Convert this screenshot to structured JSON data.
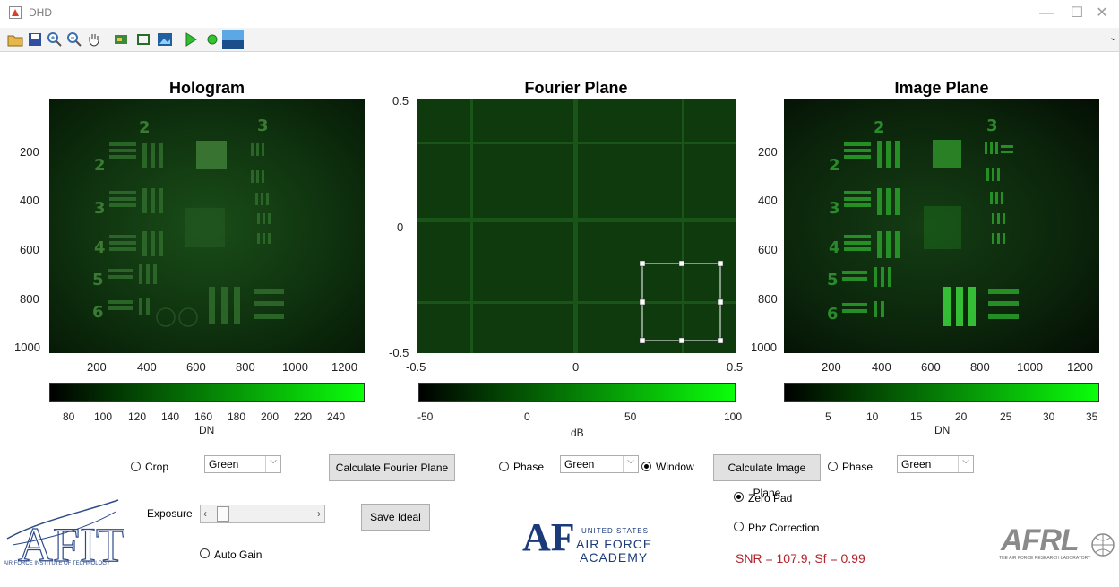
{
  "window": {
    "title": "DHD",
    "minimize": "—",
    "maximize": "☐",
    "close": "✕"
  },
  "toolbar": {
    "icons": [
      "open-folder-icon",
      "save-icon",
      "zoom-in-icon",
      "zoom-out-icon",
      "pan-icon",
      "data-cursor-icon",
      "rectangle-icon",
      "image-icon",
      "run-icon",
      "record-icon",
      "display-icon"
    ],
    "collapse": "⌄"
  },
  "hologram": {
    "title": "Hologram",
    "y_ticks": [
      "200",
      "400",
      "600",
      "800",
      "1000"
    ],
    "x_ticks": [
      "200",
      "400",
      "600",
      "800",
      "1000",
      "1200"
    ],
    "colorbar_ticks": [
      "80",
      "100",
      "120",
      "140",
      "160",
      "180",
      "200",
      "220",
      "240"
    ],
    "colorbar_label": "DN",
    "digits": [
      "2",
      "2",
      "3",
      "3",
      "4",
      "5",
      "6"
    ]
  },
  "fourier": {
    "title": "Fourier Plane",
    "y_ticks": [
      "0.5",
      "0",
      "-0.5"
    ],
    "x_ticks": [
      "-0.5",
      "0",
      "0.5"
    ],
    "colorbar_ticks": [
      "-50",
      "0",
      "50",
      "100"
    ],
    "colorbar_label": "dB"
  },
  "image": {
    "title": "Image Plane",
    "y_ticks": [
      "200",
      "400",
      "600",
      "800",
      "1000"
    ],
    "x_ticks": [
      "200",
      "400",
      "600",
      "800",
      "1000",
      "1200"
    ],
    "colorbar_ticks": [
      "5",
      "10",
      "15",
      "20",
      "25",
      "30",
      "35"
    ],
    "colorbar_label": "DN",
    "digits": [
      "2",
      "2",
      "3",
      "3",
      "4",
      "5",
      "6"
    ]
  },
  "controls": {
    "crop_label": "Crop",
    "color_select_1": "Green",
    "calc_fourier_label": "Calculate Fourier Plane",
    "phase_label_1": "Phase",
    "color_select_2": "Green",
    "window_label": "Window",
    "calc_image_label": "Calculate Image Plane",
    "phase_label_2": "Phase",
    "color_select_3": "Green",
    "zero_pad_label": "Zero Pad",
    "phz_correction_label": "Phz Correction",
    "exposure_label": "Exposure",
    "save_ideal_label": "Save Ideal",
    "auto_gain_label": "Auto Gain",
    "snr_text": "SNR = 107.9, Sf = 0.99",
    "slider_left": "‹",
    "slider_right": "›",
    "dropdown_arrow": "⌵"
  },
  "logos": {
    "afit_text": "AFIT",
    "afit_subtitle": "AIR FORCE INSTITUTE OF TECHNOLOGY",
    "usafa_mark": "AF",
    "usafa_line1": "UNITED STATES",
    "usafa_line2": "AIR FORCE",
    "usafa_line3": "ACADEMY",
    "afrl_text": "AFRL",
    "afrl_subtitle": "THE AIR FORCE RESEARCH LABORATORY"
  },
  "colors": {
    "plot_bg": "#061c06",
    "bar_green": "#0bff0b",
    "snr_red": "#b2232a"
  }
}
